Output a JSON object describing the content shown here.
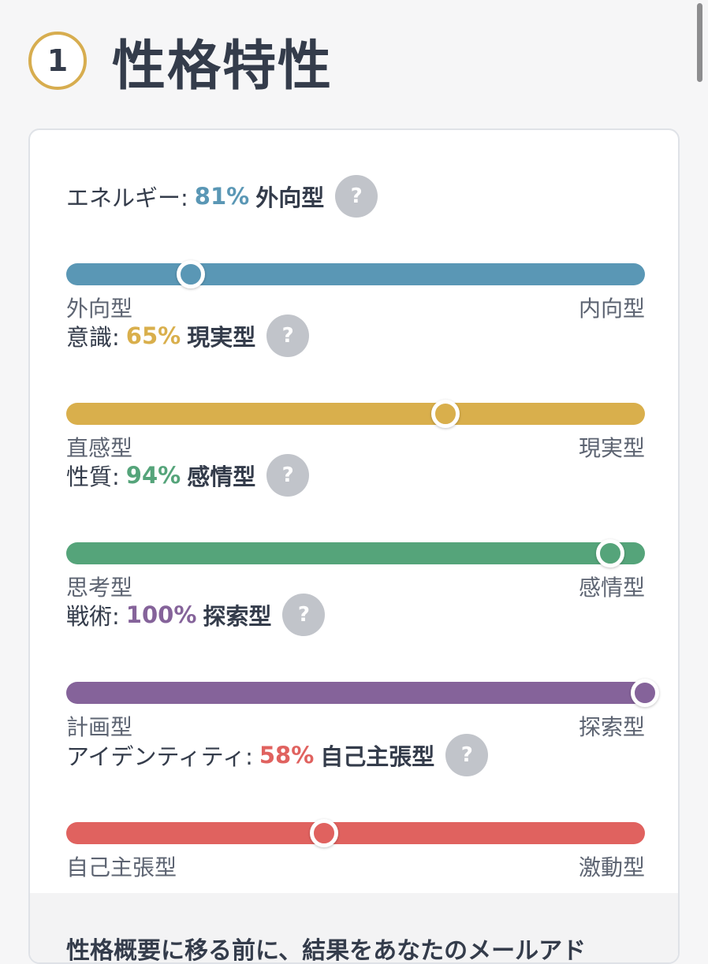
{
  "header": {
    "number": "1",
    "title": "性格特性"
  },
  "traits": [
    {
      "name": "エネルギー:",
      "percent": "81%",
      "type": "外向型",
      "value": 0.81,
      "marker": 0.215,
      "color": "#5a97b5",
      "left_label": "外向型",
      "right_label": "内向型",
      "help": "?"
    },
    {
      "name": "意識:",
      "percent": "65%",
      "type": "現実型",
      "value": 0.65,
      "marker": 0.655,
      "color": "#d9af4c",
      "left_label": "直感型",
      "right_label": "現実型",
      "help": "?"
    },
    {
      "name": "性質:",
      "percent": "94%",
      "type": "感情型",
      "value": 0.94,
      "marker": 0.94,
      "color": "#55a47a",
      "left_label": "思考型",
      "right_label": "感情型",
      "help": "?"
    },
    {
      "name": "戦術:",
      "percent": "100%",
      "type": "探索型",
      "value": 1.0,
      "marker": 1.0,
      "color": "#85639a",
      "left_label": "計画型",
      "right_label": "探索型",
      "help": "?"
    },
    {
      "name": "アイデンティティ:",
      "percent": "58%",
      "type": "自己主張型",
      "value": 0.58,
      "marker": 0.445,
      "color": "#e0625f",
      "left_label": "自己主張型",
      "right_label": "激動型",
      "help": "?"
    }
  ],
  "footer": {
    "text": "性格概要に移る前に、結果をあなたのメールアド"
  }
}
